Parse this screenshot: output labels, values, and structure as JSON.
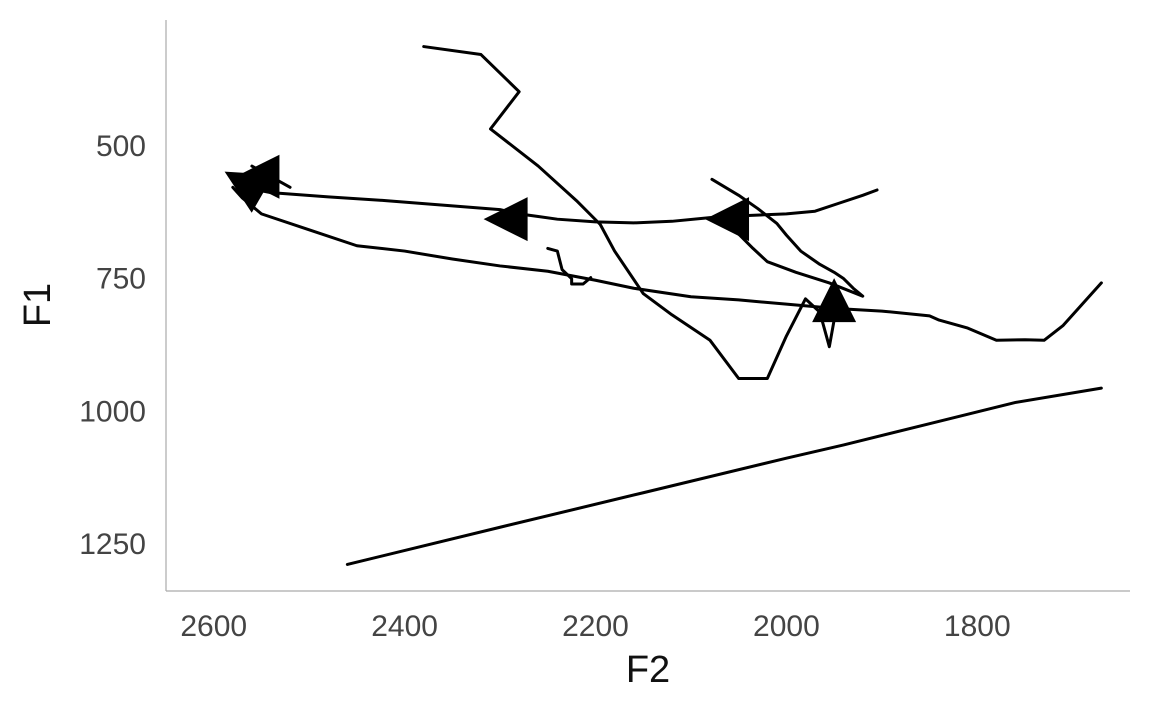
{
  "chart_data": {
    "type": "line",
    "xlabel": "F2",
    "ylabel": "F1",
    "x_reversed": true,
    "y_reversed": true,
    "xlim": [
      2650,
      1640
    ],
    "ylim": [
      1340,
      265
    ],
    "x_ticks": [
      2600,
      2400,
      2200,
      2000,
      1800
    ],
    "y_ticks": [
      500,
      750,
      1000,
      1250
    ],
    "grid": false,
    "series": [
      {
        "points": [
          [
            2460,
            1290
          ],
          [
            2300,
            1220
          ],
          [
            2150,
            1155
          ],
          [
            2000,
            1090
          ],
          [
            1940,
            1065
          ],
          [
            1850,
            1025
          ],
          [
            1760,
            985
          ],
          [
            1670,
            958
          ]
        ],
        "arrow": null
      },
      {
        "points": [
          [
            1670,
            760
          ],
          [
            1690,
            800
          ],
          [
            1710,
            840
          ],
          [
            1730,
            868
          ],
          [
            1750,
            867
          ],
          [
            1780,
            868
          ],
          [
            1810,
            845
          ],
          [
            1840,
            830
          ],
          [
            1850,
            822
          ],
          [
            1900,
            813
          ],
          [
            1950,
            808
          ],
          [
            2000,
            800
          ],
          [
            2050,
            792
          ],
          [
            2100,
            786
          ],
          [
            2160,
            770
          ],
          [
            2200,
            755
          ],
          [
            2250,
            738
          ],
          [
            2300,
            728
          ],
          [
            2350,
            715
          ],
          [
            2400,
            700
          ],
          [
            2450,
            690
          ],
          [
            2500,
            660
          ],
          [
            2550,
            630
          ],
          [
            2570,
            600
          ],
          [
            2580,
            580
          ]
        ],
        "arrow": {
          "at": [
            2565,
            575
          ],
          "dir": "up-left"
        }
      },
      {
        "points": [
          [
            2380,
            315
          ],
          [
            2320,
            330
          ],
          [
            2280,
            400
          ],
          [
            2310,
            470
          ],
          [
            2260,
            540
          ],
          [
            2220,
            605
          ],
          [
            2195,
            650
          ],
          [
            2180,
            700
          ],
          [
            2150,
            780
          ],
          [
            2120,
            820
          ],
          [
            2080,
            868
          ],
          [
            2050,
            940
          ],
          [
            2020,
            940
          ],
          [
            2000,
            860
          ],
          [
            1980,
            790
          ],
          [
            1965,
            815
          ],
          [
            1955,
            880
          ],
          [
            1950,
            830
          ]
        ],
        "arrow": {
          "at": [
            1950,
            800
          ],
          "dir": "up"
        }
      },
      {
        "points": [
          [
            2250,
            695
          ],
          [
            2240,
            700
          ],
          [
            2235,
            735
          ],
          [
            2225,
            752
          ],
          [
            2225,
            762
          ],
          [
            2213,
            762
          ],
          [
            2205,
            750
          ]
        ],
        "arrow": null
      },
      {
        "points": [
          [
            2078,
            565
          ],
          [
            2050,
            595
          ],
          [
            2030,
            620
          ],
          [
            2010,
            648
          ],
          [
            2000,
            670
          ],
          [
            1985,
            700
          ],
          [
            1965,
            725
          ],
          [
            1950,
            740
          ],
          [
            1940,
            752
          ],
          [
            1930,
            770
          ],
          [
            1920,
            785
          ],
          [
            1955,
            760
          ],
          [
            1990,
            740
          ],
          [
            2020,
            720
          ],
          [
            2035,
            695
          ],
          [
            2050,
            668
          ]
        ],
        "arrow": {
          "at": [
            2058,
            640
          ],
          "dir": "left"
        }
      },
      {
        "points": [
          [
            1905,
            585
          ],
          [
            1920,
            595
          ],
          [
            1945,
            610
          ],
          [
            1970,
            625
          ],
          [
            2000,
            630
          ],
          [
            2040,
            633
          ],
          [
            2080,
            637
          ],
          [
            2120,
            644
          ],
          [
            2160,
            647
          ],
          [
            2200,
            645
          ],
          [
            2240,
            640
          ],
          [
            2260,
            635
          ],
          [
            2280,
            630
          ],
          [
            2300,
            622
          ],
          [
            2350,
            615
          ],
          [
            2420,
            605
          ],
          [
            2480,
            598
          ],
          [
            2540,
            590
          ],
          [
            2560,
            583
          ]
        ],
        "arrow": {
          "at": [
            2290,
            640
          ],
          "dir": "left"
        }
      },
      {
        "points": [
          [
            2560,
            540
          ],
          [
            2540,
            560
          ],
          [
            2520,
            580
          ]
        ],
        "arrow": {
          "at": [
            2550,
            560
          ],
          "dir": "left"
        }
      }
    ]
  }
}
